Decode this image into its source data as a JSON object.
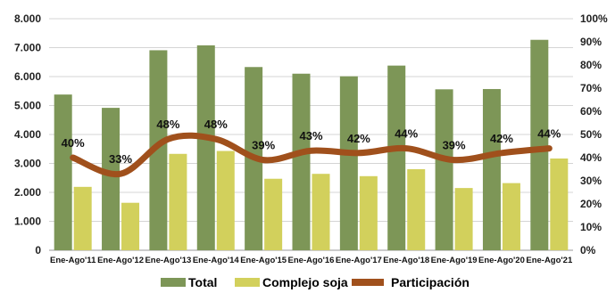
{
  "chart_data": {
    "type": "bar",
    "categories": [
      "Ene-Ago'11",
      "Ene-Ago'12",
      "Ene-Ago'13",
      "Ene-Ago'14",
      "Ene-Ago'15",
      "Ene-Ago'16",
      "Ene-Ago'17",
      "Ene-Ago'18",
      "Ene-Ago'19",
      "Ene-Ago'20",
      "Ene-Ago'21"
    ],
    "series": [
      {
        "name": "Total",
        "kind": "bar",
        "axis": "left",
        "color": "#7d9657",
        "values": [
          5380,
          4920,
          6910,
          7080,
          6330,
          6100,
          6010,
          6380,
          5560,
          5570,
          7270
        ]
      },
      {
        "name": "Complejo soja",
        "kind": "bar",
        "axis": "left",
        "color": "#d2d05c",
        "values": [
          2190,
          1640,
          3330,
          3430,
          2470,
          2640,
          2560,
          2800,
          2150,
          2320,
          3170
        ]
      },
      {
        "name": "Participación",
        "kind": "line",
        "axis": "right",
        "color": "#a0501c",
        "values": [
          40,
          33,
          48,
          48,
          39,
          43,
          42,
          44,
          39,
          42,
          44
        ],
        "labels": [
          "40%",
          "33%",
          "48%",
          "48%",
          "39%",
          "43%",
          "42%",
          "44%",
          "39%",
          "42%",
          "44%"
        ]
      }
    ],
    "left_axis": {
      "ylim": [
        0,
        8000
      ],
      "ticks": [
        "0",
        "1.000",
        "2.000",
        "3.000",
        "4.000",
        "5.000",
        "6.000",
        "7.000",
        "8.000"
      ]
    },
    "right_axis": {
      "ylim": [
        0,
        100
      ],
      "ticks": [
        "0%",
        "10%",
        "20%",
        "30%",
        "40%",
        "50%",
        "60%",
        "70%",
        "80%",
        "90%",
        "100%"
      ]
    },
    "grid": true,
    "legend_position": "bottom"
  }
}
